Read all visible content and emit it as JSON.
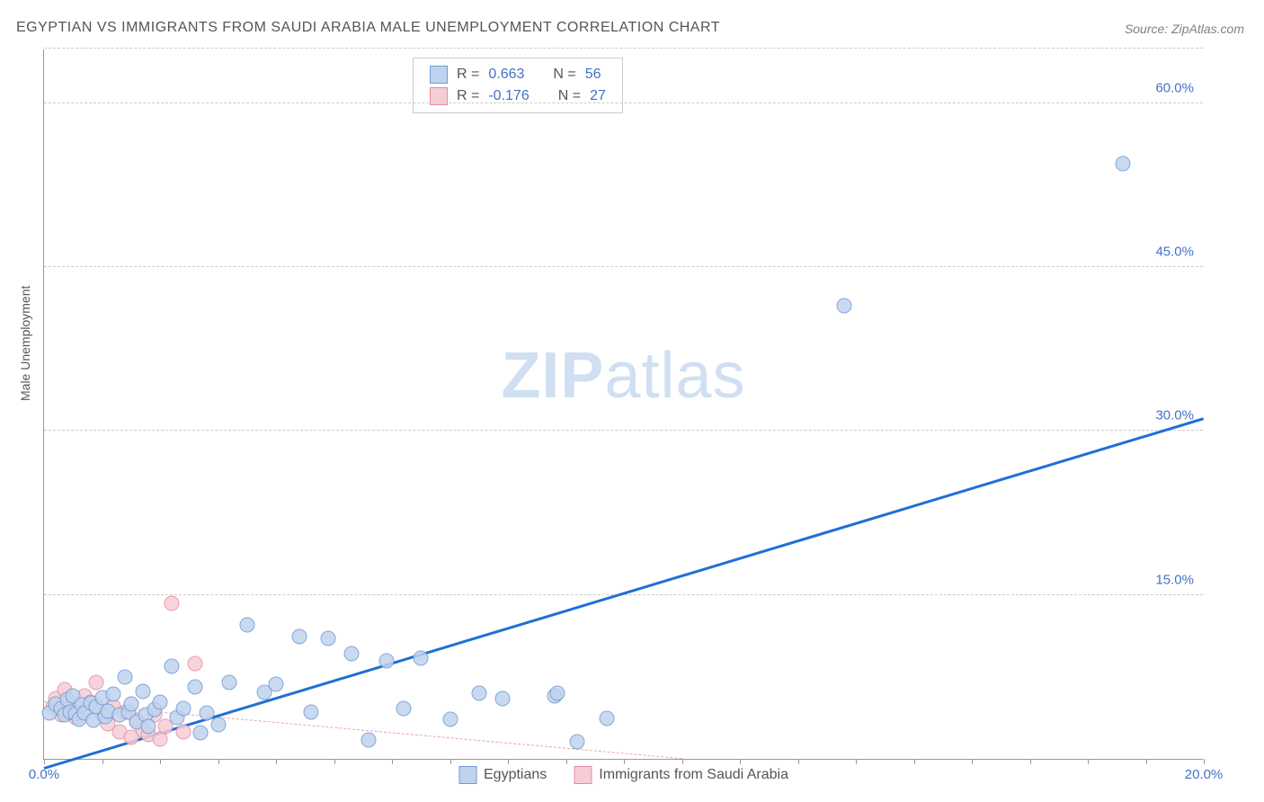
{
  "title": "EGYPTIAN VS IMMIGRANTS FROM SAUDI ARABIA MALE UNEMPLOYMENT CORRELATION CHART",
  "source": "Source: ZipAtlas.com",
  "ylabel": "Male Unemployment",
  "watermark_a": "ZIP",
  "watermark_b": "atlas",
  "chart": {
    "type": "scatter",
    "xlim": [
      0,
      20
    ],
    "ylim": [
      0,
      65
    ],
    "x_tick_step": 1,
    "x_tick_labels": [
      {
        "x": 0,
        "label": "0.0%"
      },
      {
        "x": 20,
        "label": "20.0%"
      }
    ],
    "y_tick_labels": [
      {
        "y": 15,
        "label": "15.0%"
      },
      {
        "y": 30,
        "label": "30.0%"
      },
      {
        "y": 45,
        "label": "45.0%"
      },
      {
        "y": 60,
        "label": "60.0%"
      }
    ],
    "grid_y": [
      15,
      30,
      45,
      60,
      65
    ],
    "background_color": "#ffffff",
    "grid_color": "#cccccc",
    "axis_color": "#999999"
  },
  "series": {
    "egyptians": {
      "label": "Egyptians",
      "fill": "#c0d3ee",
      "stroke": "#6f9ad3",
      "marker_radius": 8.5,
      "R": "0.663",
      "N": "56",
      "trend": {
        "x1": 0,
        "y1": -1,
        "x2": 20,
        "y2": 31,
        "color": "#1f6fd6",
        "width": 3,
        "dash": false
      },
      "points": [
        [
          0.1,
          4.2
        ],
        [
          0.2,
          5.0
        ],
        [
          0.3,
          4.6
        ],
        [
          0.35,
          4.0
        ],
        [
          0.4,
          5.4
        ],
        [
          0.45,
          4.3
        ],
        [
          0.5,
          5.8
        ],
        [
          0.55,
          4.1
        ],
        [
          0.6,
          3.6
        ],
        [
          0.65,
          4.9
        ],
        [
          0.7,
          4.2
        ],
        [
          0.8,
          5.1
        ],
        [
          0.85,
          3.5
        ],
        [
          0.9,
          4.8
        ],
        [
          1.0,
          5.6
        ],
        [
          1.05,
          3.9
        ],
        [
          1.1,
          4.4
        ],
        [
          1.2,
          5.9
        ],
        [
          1.3,
          4.0
        ],
        [
          1.4,
          7.5
        ],
        [
          1.45,
          4.3
        ],
        [
          1.5,
          5.0
        ],
        [
          1.6,
          3.4
        ],
        [
          1.7,
          6.2
        ],
        [
          1.75,
          4.0
        ],
        [
          1.8,
          3.0
        ],
        [
          1.9,
          4.5
        ],
        [
          2.0,
          5.2
        ],
        [
          2.2,
          8.5
        ],
        [
          2.3,
          3.8
        ],
        [
          2.4,
          4.6
        ],
        [
          2.6,
          6.6
        ],
        [
          2.7,
          2.4
        ],
        [
          2.8,
          4.2
        ],
        [
          3.0,
          3.1
        ],
        [
          3.2,
          7.0
        ],
        [
          3.5,
          12.3
        ],
        [
          3.8,
          6.1
        ],
        [
          4.0,
          6.8
        ],
        [
          4.4,
          11.2
        ],
        [
          4.6,
          4.3
        ],
        [
          4.9,
          11.0
        ],
        [
          5.3,
          9.6
        ],
        [
          5.6,
          1.7
        ],
        [
          5.9,
          9.0
        ],
        [
          6.2,
          4.6
        ],
        [
          6.5,
          9.2
        ],
        [
          7.0,
          3.6
        ],
        [
          7.5,
          6.0
        ],
        [
          7.9,
          5.5
        ],
        [
          8.8,
          5.8
        ],
        [
          8.85,
          6.0
        ],
        [
          9.2,
          1.6
        ],
        [
          9.7,
          3.7
        ],
        [
          13.8,
          41.5
        ],
        [
          18.6,
          54.5
        ]
      ]
    },
    "immigrants": {
      "label": "Immigrants from Saudi Arabia",
      "fill": "#f6cdd5",
      "stroke": "#e48ca0",
      "marker_radius": 8.5,
      "R": "-0.176",
      "N": "27",
      "trend": {
        "x1": 0,
        "y1": 5.2,
        "x2": 11,
        "y2": 0,
        "color": "#e9a3b2",
        "width": 1,
        "dash": true
      },
      "points": [
        [
          0.15,
          4.8
        ],
        [
          0.2,
          5.5
        ],
        [
          0.3,
          4.0
        ],
        [
          0.35,
          6.3
        ],
        [
          0.4,
          4.5
        ],
        [
          0.5,
          5.0
        ],
        [
          0.55,
          3.8
        ],
        [
          0.6,
          4.2
        ],
        [
          0.7,
          5.8
        ],
        [
          0.75,
          4.5
        ],
        [
          0.8,
          5.2
        ],
        [
          0.9,
          7.0
        ],
        [
          1.0,
          4.0
        ],
        [
          1.1,
          3.2
        ],
        [
          1.2,
          4.8
        ],
        [
          1.3,
          2.5
        ],
        [
          1.4,
          4.3
        ],
        [
          1.5,
          2.0
        ],
        [
          1.6,
          3.5
        ],
        [
          1.7,
          2.6
        ],
        [
          1.8,
          2.2
        ],
        [
          1.9,
          4.0
        ],
        [
          2.0,
          1.8
        ],
        [
          2.1,
          3.0
        ],
        [
          2.2,
          14.2
        ],
        [
          2.4,
          2.5
        ],
        [
          2.6,
          8.7
        ]
      ]
    }
  },
  "legend_stats_labels": {
    "R": "R  =",
    "N": "N  ="
  }
}
